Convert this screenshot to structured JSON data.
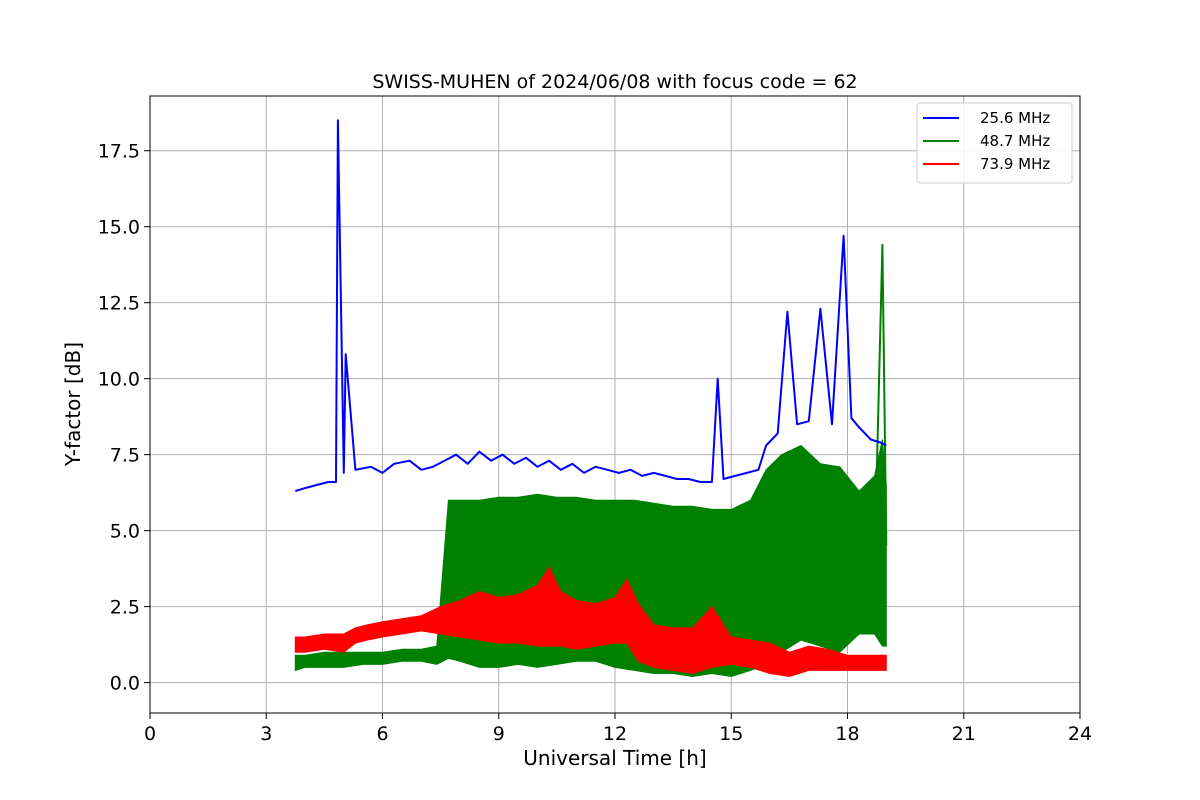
{
  "chart_data": {
    "type": "line",
    "title": "SWISS-MUHEN of 2024/06/08 with focus code = 62",
    "xlabel": "Universal Time [h]",
    "ylabel": "Y-factor [dB]",
    "xlim": [
      0,
      24
    ],
    "ylim": [
      -1.0,
      19.3
    ],
    "xticks": [
      0,
      3,
      6,
      9,
      12,
      15,
      18,
      21,
      24
    ],
    "xtick_labels": [
      "0",
      "3",
      "6",
      "9",
      "12",
      "15",
      "18",
      "21",
      "24"
    ],
    "yticks": [
      0,
      2.5,
      5,
      7.5,
      10,
      12.5,
      15,
      17.5
    ],
    "ytick_labels": [
      "0.0",
      "2.5",
      "5.0",
      "7.5",
      "10.0",
      "12.5",
      "15.0",
      "17.5"
    ],
    "grid": true,
    "legend_position": "top-right",
    "series": [
      {
        "name": "25.6 MHz",
        "color": "#0000ff",
        "x": [
          3.75,
          4.0,
          4.3,
          4.6,
          4.8,
          4.85,
          5.0,
          5.05,
          5.3,
          5.7,
          6.0,
          6.3,
          6.7,
          7.0,
          7.3,
          7.6,
          7.9,
          8.2,
          8.5,
          8.8,
          9.1,
          9.4,
          9.7,
          10.0,
          10.3,
          10.6,
          10.9,
          11.2,
          11.5,
          11.8,
          12.1,
          12.4,
          12.7,
          13.0,
          13.3,
          13.6,
          13.9,
          14.2,
          14.5,
          14.65,
          14.8,
          15.1,
          15.4,
          15.7,
          15.9,
          16.2,
          16.45,
          16.7,
          17.0,
          17.3,
          17.6,
          17.9,
          18.1,
          18.3,
          18.6,
          18.85,
          19.0
        ],
        "y": [
          6.3,
          6.4,
          6.5,
          6.6,
          6.6,
          18.5,
          6.9,
          10.8,
          7.0,
          7.1,
          6.9,
          7.2,
          7.3,
          7.0,
          7.1,
          7.3,
          7.5,
          7.2,
          7.6,
          7.3,
          7.5,
          7.2,
          7.4,
          7.1,
          7.3,
          7.0,
          7.2,
          6.9,
          7.1,
          7.0,
          6.9,
          7.0,
          6.8,
          6.9,
          6.8,
          6.7,
          6.7,
          6.6,
          6.6,
          10.0,
          6.7,
          6.8,
          6.9,
          7.0,
          7.8,
          8.2,
          12.2,
          8.5,
          8.6,
          12.3,
          8.5,
          14.7,
          8.7,
          8.4,
          8.0,
          7.9,
          7.8
        ]
      },
      {
        "name": "48.7 MHz",
        "color": "#008000",
        "x": [
          3.75,
          4.0,
          4.5,
          5.0,
          5.5,
          6.0,
          6.5,
          7.0,
          7.4,
          7.7,
          8.0,
          8.5,
          9.0,
          9.5,
          10.0,
          10.5,
          11.0,
          11.5,
          12.0,
          12.5,
          13.0,
          13.5,
          14.0,
          14.5,
          15.0,
          15.5,
          15.9,
          16.3,
          16.8,
          17.3,
          17.8,
          18.3,
          18.7,
          18.9,
          19.0
        ],
        "y": [
          0.7,
          0.7,
          0.7,
          0.8,
          0.8,
          0.8,
          0.9,
          0.9,
          1.0,
          3.5,
          3.4,
          3.5,
          3.6,
          3.6,
          3.7,
          3.6,
          3.6,
          3.5,
          3.5,
          3.4,
          3.3,
          3.3,
          3.2,
          3.2,
          3.2,
          3.4,
          4.0,
          4.0,
          4.2,
          4.5,
          4.3,
          4.3,
          4.0,
          14.4,
          4.5
        ],
        "min": [
          0.4,
          0.5,
          0.5,
          0.5,
          0.6,
          0.6,
          0.7,
          0.7,
          0.6,
          0.8,
          0.7,
          0.5,
          0.5,
          0.6,
          0.5,
          0.6,
          0.7,
          0.7,
          0.5,
          0.4,
          0.3,
          0.3,
          0.2,
          0.3,
          0.2,
          0.4,
          0.6,
          1.0,
          1.4,
          1.2,
          1.0,
          1.6,
          1.6,
          1.2,
          1.2
        ],
        "max": [
          0.9,
          0.9,
          1.0,
          1.0,
          1.0,
          1.0,
          1.1,
          1.1,
          1.2,
          6.0,
          6.0,
          6.0,
          6.1,
          6.1,
          6.2,
          6.1,
          6.1,
          6.0,
          6.0,
          6.0,
          5.9,
          5.8,
          5.8,
          5.7,
          5.7,
          6.0,
          7.0,
          7.5,
          7.8,
          7.2,
          7.1,
          6.3,
          6.8,
          8.0,
          6.5
        ]
      },
      {
        "name": "73.9 MHz",
        "color": "#ff0000",
        "x": [
          3.75,
          4.0,
          4.5,
          5.0,
          5.3,
          5.6,
          6.0,
          6.5,
          7.0,
          7.5,
          8.0,
          8.5,
          9.0,
          9.5,
          10.0,
          10.3,
          10.6,
          11.0,
          11.5,
          12.0,
          12.3,
          12.6,
          13.0,
          13.5,
          14.0,
          14.5,
          15.0,
          15.5,
          16.0,
          16.5,
          17.0,
          17.5,
          18.0,
          18.5,
          19.0
        ],
        "y": [
          1.2,
          1.2,
          1.3,
          1.3,
          1.5,
          1.6,
          1.7,
          1.8,
          1.9,
          2.0,
          2.1,
          2.1,
          2.0,
          2.0,
          2.1,
          2.3,
          2.0,
          1.8,
          1.8,
          1.9,
          2.2,
          1.6,
          1.3,
          1.1,
          1.0,
          1.4,
          1.0,
          0.9,
          0.8,
          0.6,
          0.7,
          0.7,
          0.6,
          0.6,
          0.6
        ],
        "min": [
          1.0,
          1.0,
          1.1,
          1.0,
          1.3,
          1.4,
          1.5,
          1.6,
          1.7,
          1.6,
          1.5,
          1.4,
          1.3,
          1.3,
          1.2,
          1.2,
          1.2,
          1.1,
          1.2,
          1.3,
          1.3,
          0.7,
          0.5,
          0.4,
          0.3,
          0.5,
          0.6,
          0.5,
          0.3,
          0.2,
          0.4,
          0.4,
          0.4,
          0.4,
          0.4
        ],
        "max": [
          1.5,
          1.5,
          1.6,
          1.6,
          1.8,
          1.9,
          2.0,
          2.1,
          2.2,
          2.5,
          2.7,
          3.0,
          2.8,
          2.9,
          3.2,
          3.8,
          3.0,
          2.7,
          2.6,
          2.8,
          3.4,
          2.6,
          1.9,
          1.8,
          1.8,
          2.5,
          1.5,
          1.4,
          1.3,
          1.0,
          1.2,
          1.1,
          0.9,
          0.9,
          0.9
        ]
      }
    ]
  }
}
